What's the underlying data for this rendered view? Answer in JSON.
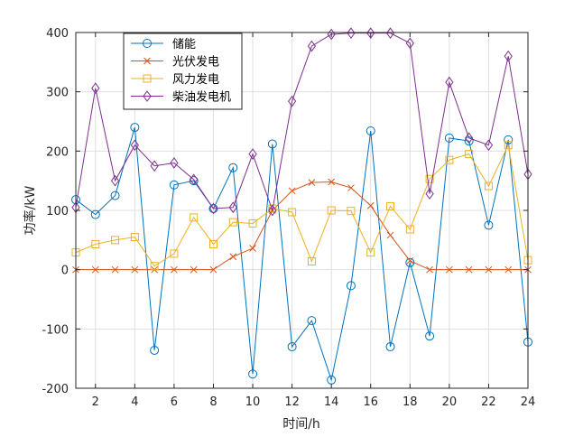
{
  "chart_data": {
    "type": "line",
    "xlabel": "时间/h",
    "ylabel": "功率/kW",
    "xlim": [
      1,
      24
    ],
    "ylim": [
      -200,
      400
    ],
    "xticks": [
      2,
      4,
      6,
      8,
      10,
      12,
      14,
      16,
      18,
      20,
      22,
      24
    ],
    "yticks": [
      -200,
      -100,
      0,
      100,
      200,
      300,
      400
    ],
    "grid": true,
    "legend_position": "top-left",
    "x": [
      1,
      2,
      3,
      4,
      5,
      6,
      7,
      8,
      9,
      10,
      11,
      12,
      13,
      14,
      15,
      16,
      17,
      18,
      19,
      20,
      21,
      22,
      23,
      24
    ],
    "series": [
      {
        "name": "储能",
        "color": "#0072BD",
        "marker": "circle",
        "values": [
          118,
          93,
          125,
          240,
          -136,
          143,
          150,
          103,
          172,
          -176,
          212,
          -130,
          -86,
          -186,
          -27,
          234,
          -130,
          12,
          -112,
          222,
          217,
          75,
          219,
          -122
        ]
      },
      {
        "name": "光伏发电",
        "color": "#D95319",
        "marker": "x",
        "values": [
          0,
          0,
          0,
          0,
          0,
          0,
          0,
          0,
          22,
          36,
          100,
          133,
          147,
          148,
          138,
          108,
          58,
          15,
          0,
          0,
          0,
          0,
          0,
          0
        ]
      },
      {
        "name": "风力发电",
        "color": "#EDB120",
        "marker": "square",
        "values": [
          29,
          43,
          50,
          55,
          6,
          27,
          88,
          43,
          80,
          78,
          103,
          97,
          14,
          100,
          99,
          29,
          107,
          68,
          153,
          185,
          195,
          141,
          210,
          16
        ]
      },
      {
        "name": "柴油发电机",
        "color": "#7E2F8E",
        "marker": "diamond",
        "values": [
          105,
          306,
          150,
          210,
          175,
          180,
          152,
          103,
          105,
          195,
          100,
          284,
          377,
          397,
          399,
          399,
          399,
          382,
          128,
          316,
          222,
          210,
          360,
          161
        ]
      }
    ]
  }
}
